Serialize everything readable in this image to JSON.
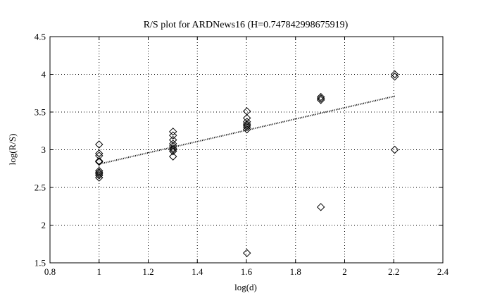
{
  "chart_data": {
    "type": "scatter",
    "title": "R/S plot for ARDNews16 (H=0.747842998675919)",
    "xlabel": "log(d)",
    "ylabel": "log(R/S)",
    "xlim": [
      0.8,
      2.4
    ],
    "ylim": [
      1.5,
      4.5
    ],
    "xticks": [
      "0.8",
      "1",
      "1.2",
      "1.4",
      "1.6",
      "1.8",
      "2",
      "2.2",
      "2.4"
    ],
    "yticks": [
      "1.5",
      "2",
      "2.5",
      "3",
      "3.5",
      "4",
      "4.5"
    ],
    "grid": true,
    "series": [
      {
        "marker": "diamond",
        "points": [
          [
            1.0,
            3.07
          ],
          [
            1.0,
            2.95
          ],
          [
            1.0,
            2.92
          ],
          [
            1.0,
            2.85
          ],
          [
            1.0,
            2.84
          ],
          [
            1.0,
            2.72
          ],
          [
            1.0,
            2.7
          ],
          [
            1.0,
            2.68
          ],
          [
            1.0,
            2.66
          ],
          [
            1.0,
            2.63
          ],
          [
            1.301,
            3.24
          ],
          [
            1.301,
            3.19
          ],
          [
            1.301,
            3.13
          ],
          [
            1.301,
            3.08
          ],
          [
            1.301,
            3.05
          ],
          [
            1.301,
            3.02
          ],
          [
            1.301,
            3.0
          ],
          [
            1.301,
            2.98
          ],
          [
            1.301,
            2.91
          ],
          [
            1.602,
            3.51
          ],
          [
            1.602,
            3.42
          ],
          [
            1.602,
            3.37
          ],
          [
            1.602,
            3.34
          ],
          [
            1.602,
            3.32
          ],
          [
            1.602,
            3.3
          ],
          [
            1.602,
            3.27
          ],
          [
            1.602,
            1.63
          ],
          [
            1.903,
            3.7
          ],
          [
            1.903,
            3.68
          ],
          [
            1.903,
            3.66
          ],
          [
            1.903,
            2.24
          ],
          [
            2.204,
            4.0
          ],
          [
            2.204,
            3.97
          ],
          [
            2.204,
            3.0
          ]
        ]
      },
      {
        "line_style": "dotted",
        "points": [
          [
            1.0,
            2.81
          ],
          [
            2.204,
            3.71
          ]
        ]
      }
    ]
  }
}
